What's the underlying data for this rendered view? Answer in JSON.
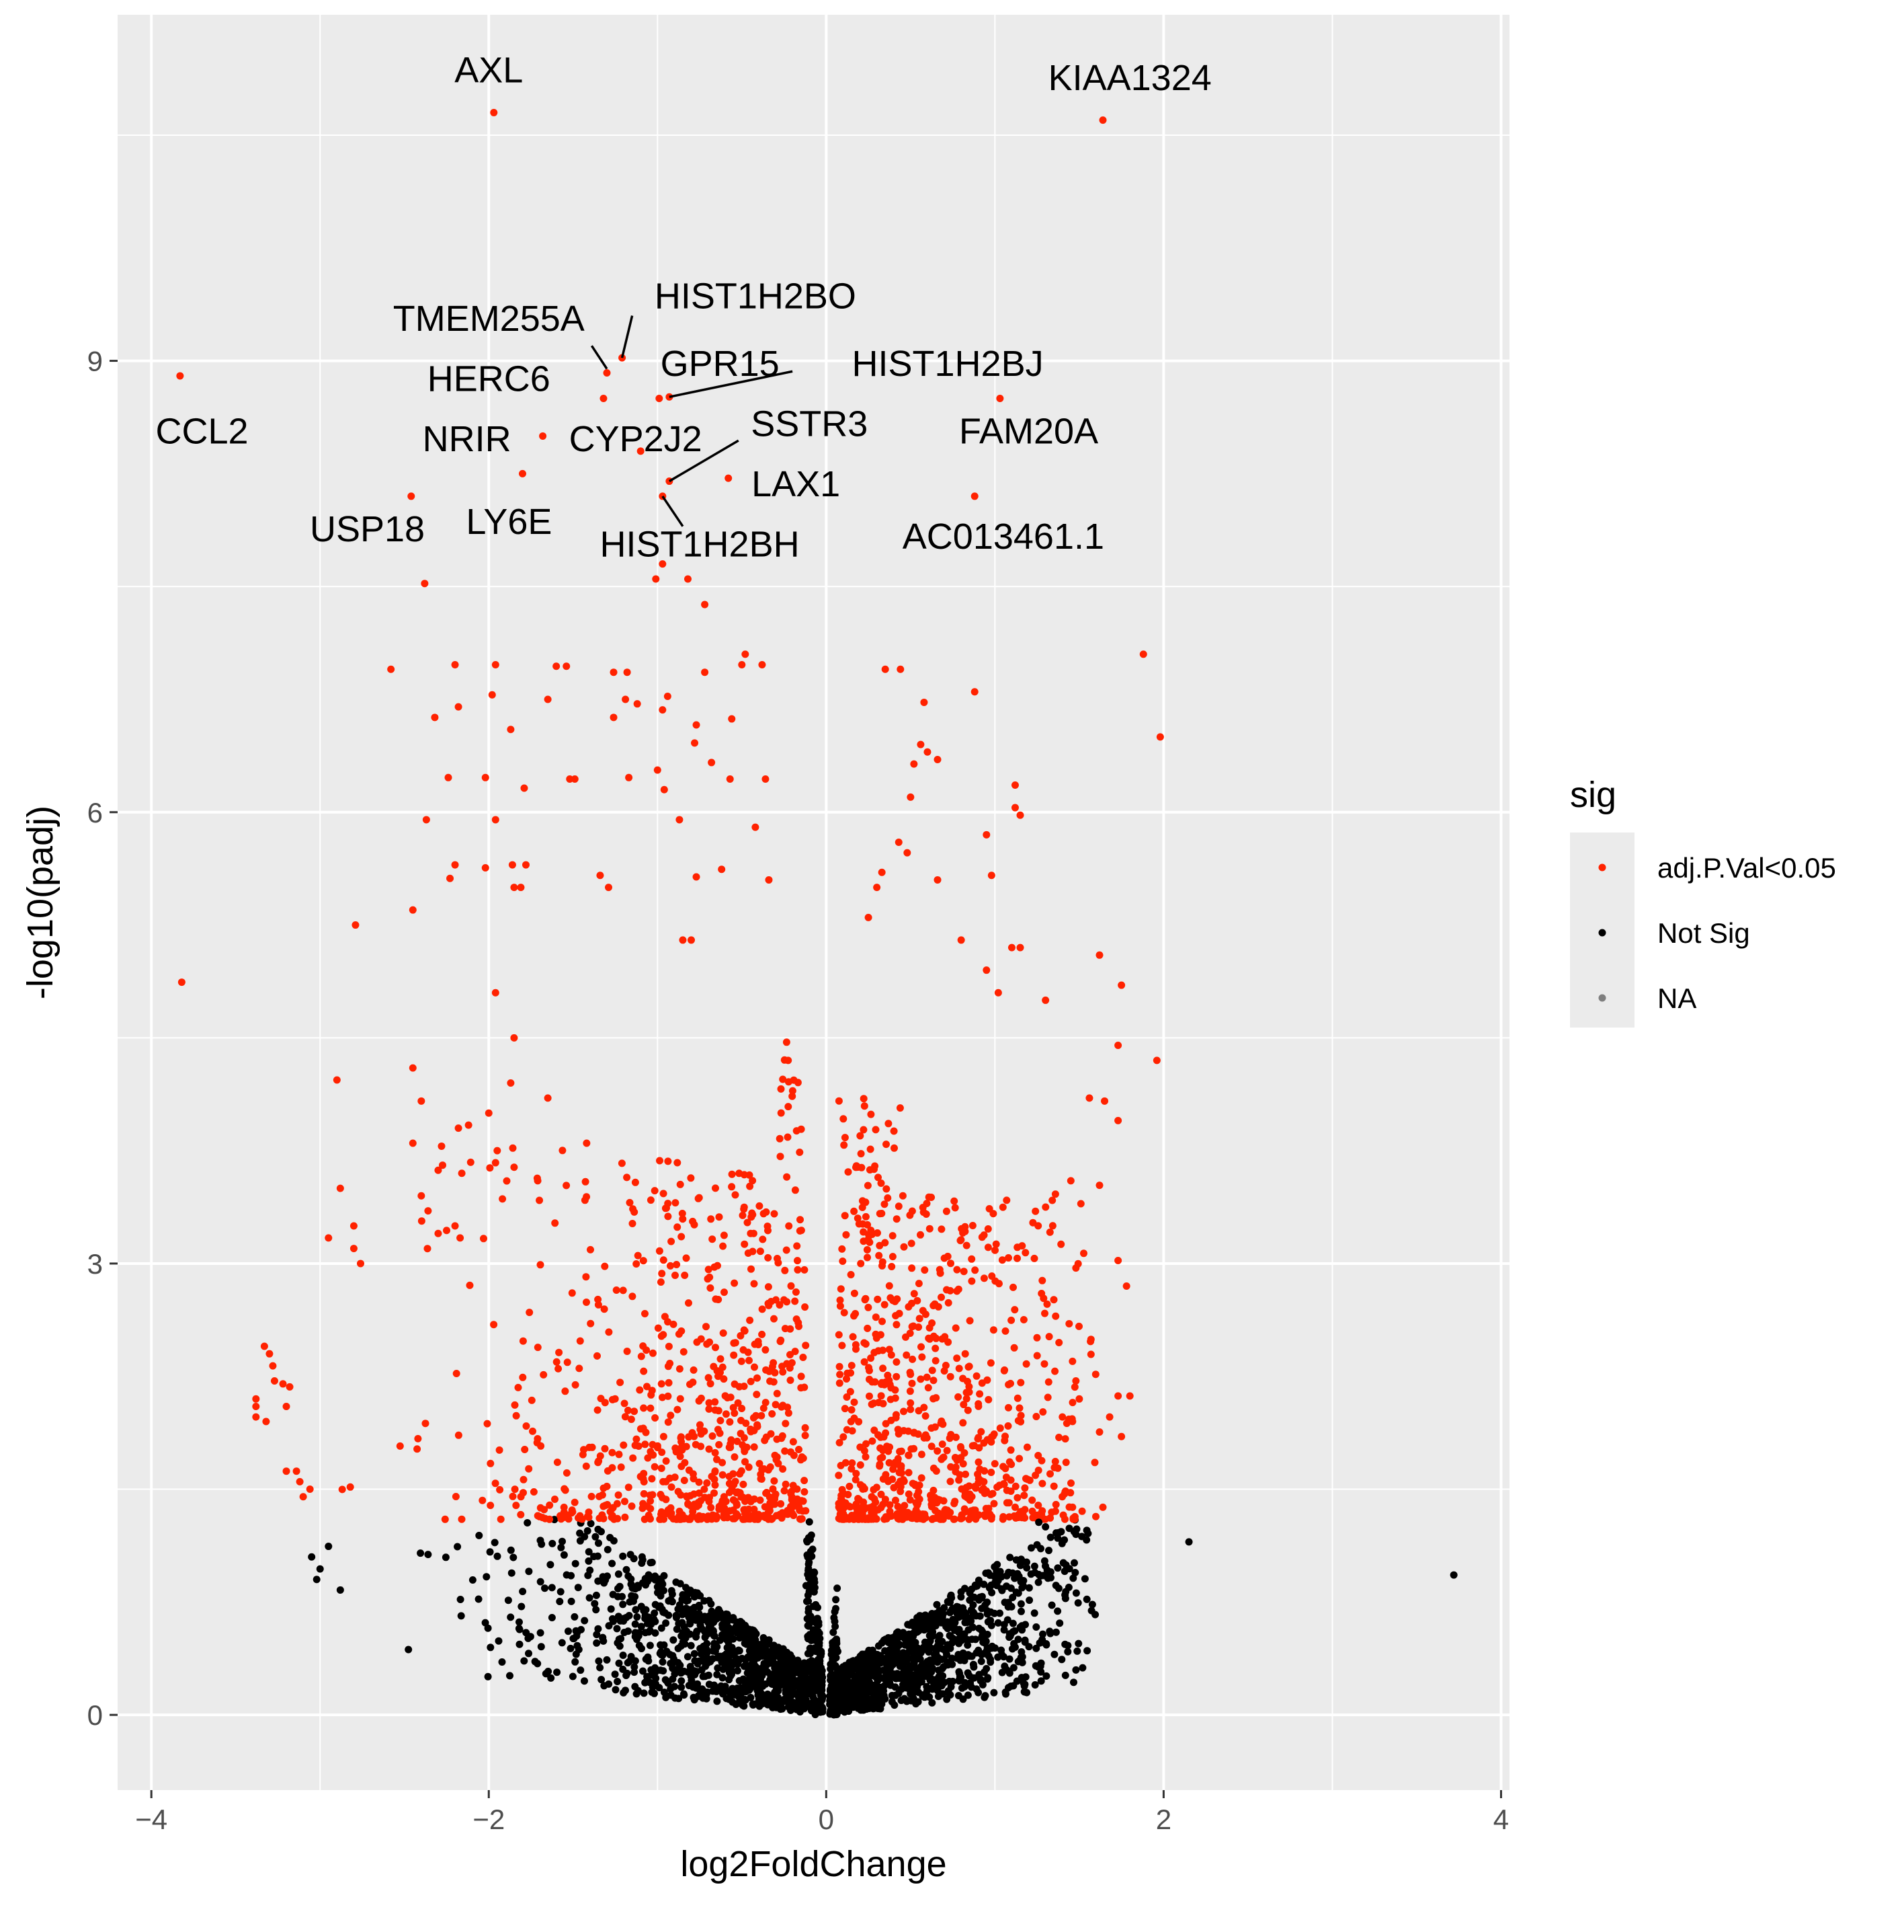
{
  "chart_data": {
    "type": "scatter",
    "title": "",
    "xlabel": "log2FoldChange",
    "ylabel": "-log10(padj)",
    "xlim": [
      -4.2,
      4.05
    ],
    "ylim": [
      -0.5,
      11.3
    ],
    "x_ticks": [
      -4,
      -2,
      0,
      2,
      4
    ],
    "x_tick_labels": [
      "−4",
      "−2",
      "0",
      "2",
      "4"
    ],
    "y_ticks": [
      0,
      3,
      6,
      9
    ],
    "y_tick_labels": [
      "0",
      "3",
      "6",
      "9"
    ],
    "grid": true,
    "legend": {
      "title": "sig",
      "position": "right",
      "entries": [
        {
          "label": "adj.P.Val<0.05",
          "color": "#ff2200"
        },
        {
          "label": "Not Sig",
          "color": "#000000"
        },
        {
          "label": "NA",
          "color": "#7f7f7f"
        }
      ]
    },
    "significance_threshold": 1.3,
    "colors": {
      "sig": "#ff2200",
      "not_sig": "#000000",
      "panel": "#ebebeb",
      "grid": "#ffffff"
    },
    "labeled_points": [
      {
        "gene": "AXL",
        "x": -1.97,
        "y": 10.65,
        "label_x": -2.0,
        "label_y": 10.85
      },
      {
        "gene": "KIAA1324",
        "x": 1.64,
        "y": 10.6,
        "label_x": 1.8,
        "label_y": 10.8
      },
      {
        "gene": "CCL2",
        "x": -3.83,
        "y": 8.9,
        "label_x": -3.7,
        "label_y": 8.45
      },
      {
        "gene": "TMEM255A",
        "x": -1.3,
        "y": 8.92,
        "label_x": -2.0,
        "label_y": 9.2
      },
      {
        "gene": "HIST1H2BO",
        "x": -1.21,
        "y": 9.02,
        "label_x": -0.42,
        "label_y": 9.35
      },
      {
        "gene": "HERC6",
        "x": -1.32,
        "y": 8.75,
        "label_x": -2.0,
        "label_y": 8.8
      },
      {
        "gene": "GPR15",
        "x": -0.99,
        "y": 8.75,
        "label_x": -0.63,
        "label_y": 8.9
      },
      {
        "gene": "HIST1H2BJ",
        "x": -0.93,
        "y": 8.76,
        "label_x": 0.72,
        "label_y": 8.9
      },
      {
        "gene": "NRIR",
        "x": -1.68,
        "y": 8.5,
        "label_x": -2.13,
        "label_y": 8.4
      },
      {
        "gene": "CYP2J2",
        "x": -1.1,
        "y": 8.4,
        "label_x": -1.13,
        "label_y": 8.4
      },
      {
        "gene": "SSTR3",
        "x": -0.93,
        "y": 8.2,
        "label_x": -0.1,
        "label_y": 8.5
      },
      {
        "gene": "FAM20A",
        "x": 1.03,
        "y": 8.75,
        "label_x": 1.2,
        "label_y": 8.45
      },
      {
        "gene": "LAX1",
        "x": -0.58,
        "y": 8.22,
        "label_x": -0.18,
        "label_y": 8.1
      },
      {
        "gene": "USP18",
        "x": -2.46,
        "y": 8.1,
        "label_x": -2.72,
        "label_y": 7.8
      },
      {
        "gene": "LY6E",
        "x": -1.8,
        "y": 8.25,
        "label_x": -1.88,
        "label_y": 7.85
      },
      {
        "gene": "HIST1H2BH",
        "x": -0.97,
        "y": 8.1,
        "label_x": -0.75,
        "label_y": 7.7
      },
      {
        "gene": "AC013461.1",
        "x": 0.88,
        "y": 8.1,
        "label_x": 1.05,
        "label_y": 7.75
      }
    ],
    "other_significant_points": [
      [
        -2.38,
        7.52
      ],
      [
        -0.82,
        7.55
      ],
      [
        -0.72,
        7.38
      ],
      [
        -0.97,
        7.65
      ],
      [
        -1.01,
        7.55
      ],
      [
        -0.48,
        7.05
      ],
      [
        -0.5,
        6.98
      ],
      [
        -2.58,
        6.95
      ],
      [
        -2.2,
        6.98
      ],
      [
        -1.96,
        6.98
      ],
      [
        -1.6,
        6.97
      ],
      [
        -1.54,
        6.97
      ],
      [
        -1.26,
        6.93
      ],
      [
        -1.18,
        6.93
      ],
      [
        -0.72,
        6.93
      ],
      [
        -0.38,
        6.98
      ],
      [
        0.35,
        6.95
      ],
      [
        0.44,
        6.95
      ],
      [
        0.88,
        6.8
      ],
      [
        -2.32,
        6.63
      ],
      [
        -2.18,
        6.7
      ],
      [
        -1.65,
        6.75
      ],
      [
        -1.98,
        6.78
      ],
      [
        -1.87,
        6.55
      ],
      [
        -1.26,
        6.63
      ],
      [
        -1.19,
        6.75
      ],
      [
        -1.12,
        6.72
      ],
      [
        -0.97,
        6.68
      ],
      [
        -0.94,
        6.77
      ],
      [
        -0.77,
        6.58
      ],
      [
        -0.78,
        6.46
      ],
      [
        -0.56,
        6.62
      ],
      [
        -0.68,
        6.33
      ],
      [
        1.88,
        7.05
      ],
      [
        1.98,
        6.5
      ],
      [
        0.58,
        6.73
      ],
      [
        0.56,
        6.45
      ],
      [
        0.6,
        6.4
      ],
      [
        0.52,
        6.32
      ],
      [
        0.66,
        6.35
      ],
      [
        -2.24,
        6.23
      ],
      [
        -2.02,
        6.23
      ],
      [
        -1.79,
        6.16
      ],
      [
        -1.52,
        6.22
      ],
      [
        -1.49,
        6.22
      ],
      [
        -1.17,
        6.23
      ],
      [
        -1.0,
        6.28
      ],
      [
        -0.96,
        6.15
      ],
      [
        -0.57,
        6.22
      ],
      [
        -0.36,
        6.22
      ],
      [
        0.5,
        6.1
      ],
      [
        1.12,
        6.18
      ],
      [
        1.12,
        6.03
      ],
      [
        1.15,
        5.98
      ],
      [
        -2.37,
        5.95
      ],
      [
        -1.96,
        5.95
      ],
      [
        -0.87,
        5.95
      ],
      [
        -0.42,
        5.9
      ],
      [
        0.43,
        5.8
      ],
      [
        0.48,
        5.73
      ],
      [
        0.95,
        5.85
      ],
      [
        -2.2,
        5.65
      ],
      [
        -2.23,
        5.56
      ],
      [
        -2.02,
        5.63
      ],
      [
        -1.86,
        5.65
      ],
      [
        -1.78,
        5.65
      ],
      [
        -1.81,
        5.5
      ],
      [
        -1.85,
        5.5
      ],
      [
        -1.34,
        5.58
      ],
      [
        -1.29,
        5.5
      ],
      [
        -0.77,
        5.57
      ],
      [
        -0.62,
        5.62
      ],
      [
        -0.34,
        5.55
      ],
      [
        0.33,
        5.6
      ],
      [
        0.3,
        5.5
      ],
      [
        0.66,
        5.55
      ],
      [
        0.98,
        5.58
      ],
      [
        -2.79,
        5.25
      ],
      [
        -2.45,
        5.35
      ],
      [
        0.25,
        5.3
      ],
      [
        -0.8,
        5.15
      ],
      [
        -0.85,
        5.15
      ],
      [
        1.62,
        5.05
      ],
      [
        1.75,
        4.85
      ],
      [
        -3.82,
        4.87
      ],
      [
        -1.96,
        4.8
      ],
      [
        0.8,
        5.15
      ],
      [
        1.1,
        5.1
      ],
      [
        1.15,
        5.1
      ],
      [
        0.95,
        4.95
      ],
      [
        1.02,
        4.8
      ],
      [
        1.3,
        4.75
      ],
      [
        -1.85,
        4.5
      ],
      [
        1.73,
        4.45
      ],
      [
        1.96,
        4.35
      ],
      [
        -2.45,
        4.3
      ],
      [
        -2.9,
        4.22
      ],
      [
        -1.87,
        4.2
      ],
      [
        -1.65,
        4.1
      ],
      [
        -2.4,
        4.08
      ],
      [
        -2.0,
        4.0
      ],
      [
        1.56,
        4.1
      ],
      [
        1.65,
        4.08
      ],
      [
        1.73,
        3.95
      ],
      [
        -2.12,
        3.92
      ],
      [
        -2.18,
        3.9
      ],
      [
        -1.42,
        3.8
      ],
      [
        -2.45,
        3.8
      ],
      [
        -2.28,
        3.78
      ],
      [
        -1.95,
        3.75
      ],
      [
        -1.96,
        3.67
      ],
      [
        -2.3,
        3.62
      ],
      [
        -1.85,
        3.64
      ],
      [
        -1.71,
        3.55
      ],
      [
        -1.7,
        3.42
      ],
      [
        -2.88,
        3.5
      ],
      [
        -2.16,
        3.6
      ],
      [
        1.45,
        3.55
      ],
      [
        1.62,
        3.52
      ],
      [
        1.34,
        3.42
      ],
      [
        -2.4,
        3.45
      ],
      [
        -2.36,
        3.35
      ],
      [
        -2.8,
        3.25
      ],
      [
        -2.95,
        3.17
      ],
      [
        -2.2,
        3.25
      ],
      [
        -2.25,
        3.22
      ],
      [
        -2.17,
        3.17
      ],
      [
        -2.3,
        3.2
      ],
      [
        -2.8,
        3.1
      ],
      [
        -2.76,
        3.0
      ],
      [
        1.73,
        3.02
      ],
      [
        1.78,
        2.85
      ],
      [
        1.48,
        2.97
      ],
      [
        1.36,
        2.65
      ],
      [
        1.44,
        2.6
      ],
      [
        -3.33,
        2.45
      ],
      [
        -3.3,
        2.4
      ],
      [
        -3.28,
        2.32
      ],
      [
        -3.27,
        2.22
      ],
      [
        -3.22,
        2.2
      ],
      [
        -3.18,
        2.18
      ],
      [
        -3.38,
        2.1
      ],
      [
        -3.38,
        2.05
      ],
      [
        -3.2,
        2.05
      ],
      [
        -3.38,
        1.98
      ],
      [
        -3.32,
        1.95
      ],
      [
        1.48,
        2.22
      ],
      [
        1.46,
        2.35
      ],
      [
        1.5,
        2.1
      ],
      [
        1.4,
        1.98
      ],
      [
        1.46,
        1.95
      ],
      [
        1.8,
        2.12
      ],
      [
        1.73,
        2.12
      ],
      [
        1.68,
        1.98
      ],
      [
        1.62,
        1.88
      ],
      [
        1.75,
        1.85
      ],
      [
        1.35,
        1.52
      ],
      [
        -3.2,
        1.62
      ],
      [
        -3.14,
        1.62
      ],
      [
        -3.12,
        1.55
      ],
      [
        -3.1,
        1.45
      ],
      [
        -3.06,
        1.5
      ],
      [
        1.64,
        1.38
      ],
      [
        1.46,
        1.38
      ],
      [
        1.12,
        1.38
      ]
    ],
    "other_nonsignificant_points": [
      [
        2.15,
        1.15
      ],
      [
        3.72,
        0.93
      ],
      [
        1.26,
        1.28
      ],
      [
        1.3,
        1.25
      ],
      [
        1.33,
        1.18
      ],
      [
        1.48,
        1.2
      ],
      [
        -3.0,
        0.97
      ],
      [
        -2.88,
        0.83
      ],
      [
        -3.02,
        0.9
      ],
      [
        1.28,
        0.5
      ],
      [
        1.12,
        0.45
      ],
      [
        1.18,
        0.6
      ],
      [
        -3.05,
        1.05
      ],
      [
        -2.95,
        1.12
      ]
    ]
  }
}
